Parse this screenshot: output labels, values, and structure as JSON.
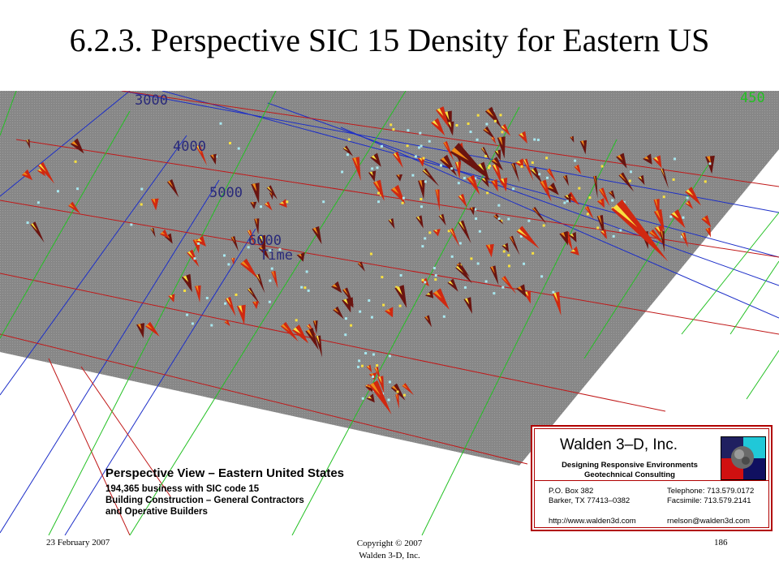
{
  "slide": {
    "title": "6.2.3. Perspective SIC 15 Density for Eastern US"
  },
  "visualization": {
    "grid_labels": [
      "3000",
      "4000",
      "5000",
      "6000",
      "Time",
      "450"
    ],
    "colors": {
      "surface": "#8a8a8a",
      "grid_blue": "#1c2ec8",
      "grid_red": "#c01818",
      "grid_green": "#22c022",
      "spike_dark": "#6a1410",
      "spike_red": "#d02810",
      "spike_orange": "#f08c18",
      "spike_yellow": "#f8e040",
      "dot_cyan": "#a8e8f0"
    }
  },
  "caption": {
    "title": "Perspective View – Eastern United States",
    "lines": [
      "194,365 business with SIC code 15",
      "Building Construction – General Contractors",
      "and Operative Builders"
    ]
  },
  "company_card": {
    "name": "Walden 3–D, Inc.",
    "tagline_1": "Designing Responsive Environments",
    "tagline_2": "Geotechnical Consulting",
    "address_1": "P.O. Box 382",
    "address_2": "Barker, TX   77413–0382",
    "telephone": "Telephone: 713.579.0172",
    "facsimile": "Facsimile:  713.579.2141",
    "website": "http://www.walden3d.com",
    "email": "rnelson@walden3d.com",
    "logo_colors": [
      "#20c8d8",
      "#101060",
      "#d01010",
      "#202060"
    ]
  },
  "footer": {
    "date": "23 February 2007",
    "copyright_1": "Copyright © 2007",
    "copyright_2": "Walden 3-D, Inc.",
    "page_number": "186"
  }
}
